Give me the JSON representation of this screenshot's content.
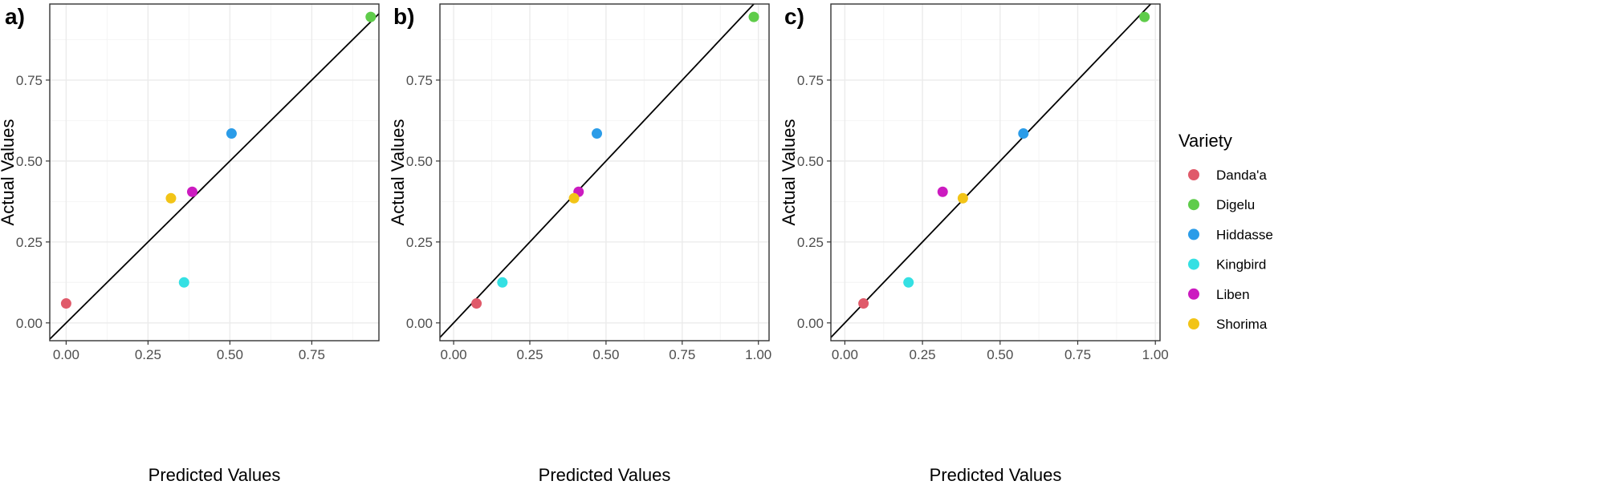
{
  "chart_data": [
    {
      "type": "scatter",
      "panel": "a)",
      "xlabel": "Predicted Values",
      "ylabel": "Actual Values",
      "xlim": [
        -0.05,
        0.955
      ],
      "ylim": [
        -0.055,
        0.985
      ],
      "x_ticks": [
        "0.00",
        "0.25",
        "0.50",
        "0.75"
      ],
      "y_ticks": [
        "0.00",
        "0.25",
        "0.50",
        "0.75"
      ],
      "reference_line": "y = x",
      "grid": true,
      "points": [
        {
          "variety": "Danda'a",
          "x": 0.0,
          "y": 0.06
        },
        {
          "variety": "Digelu",
          "x": 0.93,
          "y": 0.945
        },
        {
          "variety": "Hiddasse",
          "x": 0.505,
          "y": 0.585
        },
        {
          "variety": "Kingbird",
          "x": 0.36,
          "y": 0.125
        },
        {
          "variety": "Liben",
          "x": 0.385,
          "y": 0.405
        },
        {
          "variety": "Shorima",
          "x": 0.32,
          "y": 0.385
        }
      ]
    },
    {
      "type": "scatter",
      "panel": "b)",
      "xlabel": "Predicted Values",
      "ylabel": "Actual Values",
      "xlim": [
        -0.045,
        1.035
      ],
      "ylim": [
        -0.055,
        0.985
      ],
      "x_ticks": [
        "0.00",
        "0.25",
        "0.50",
        "0.75",
        "1.00"
      ],
      "y_ticks": [
        "0.00",
        "0.25",
        "0.50",
        "0.75"
      ],
      "reference_line": "y = x",
      "grid": true,
      "points": [
        {
          "variety": "Danda'a",
          "x": 0.075,
          "y": 0.06
        },
        {
          "variety": "Digelu",
          "x": 0.985,
          "y": 0.945
        },
        {
          "variety": "Hiddasse",
          "x": 0.47,
          "y": 0.585
        },
        {
          "variety": "Kingbird",
          "x": 0.16,
          "y": 0.125
        },
        {
          "variety": "Liben",
          "x": 0.41,
          "y": 0.405
        },
        {
          "variety": "Shorima",
          "x": 0.395,
          "y": 0.385
        }
      ]
    },
    {
      "type": "scatter",
      "panel": "c)",
      "xlabel": "Predicted Values",
      "ylabel": "Actual Values",
      "xlim": [
        -0.045,
        1.015
      ],
      "ylim": [
        -0.055,
        0.985
      ],
      "x_ticks": [
        "0.00",
        "0.25",
        "0.50",
        "0.75",
        "1.00"
      ],
      "y_ticks": [
        "0.00",
        "0.25",
        "0.50",
        "0.75"
      ],
      "reference_line": "y = x",
      "grid": true,
      "points": [
        {
          "variety": "Danda'a",
          "x": 0.06,
          "y": 0.06
        },
        {
          "variety": "Digelu",
          "x": 0.965,
          "y": 0.945
        },
        {
          "variety": "Hiddasse",
          "x": 0.575,
          "y": 0.585
        },
        {
          "variety": "Kingbird",
          "x": 0.205,
          "y": 0.125
        },
        {
          "variety": "Liben",
          "x": 0.315,
          "y": 0.405
        },
        {
          "variety": "Shorima",
          "x": 0.38,
          "y": 0.385
        }
      ]
    }
  ],
  "legend": {
    "title": "Variety",
    "position": "right",
    "items": [
      {
        "label": "Danda'a",
        "color": "#E05A6A"
      },
      {
        "label": "Digelu",
        "color": "#5FCC4A"
      },
      {
        "label": "Hiddasse",
        "color": "#2B9CE8"
      },
      {
        "label": "Kingbird",
        "color": "#34E0E3"
      },
      {
        "label": "Liben",
        "color": "#CC1BC0"
      },
      {
        "label": "Shorima",
        "color": "#F2C417"
      }
    ]
  },
  "colors": {
    "grid_major": "#ebebeb",
    "grid_minor": "#f4f4f4",
    "axis_border": "#333333",
    "reference_line": "#000000"
  }
}
